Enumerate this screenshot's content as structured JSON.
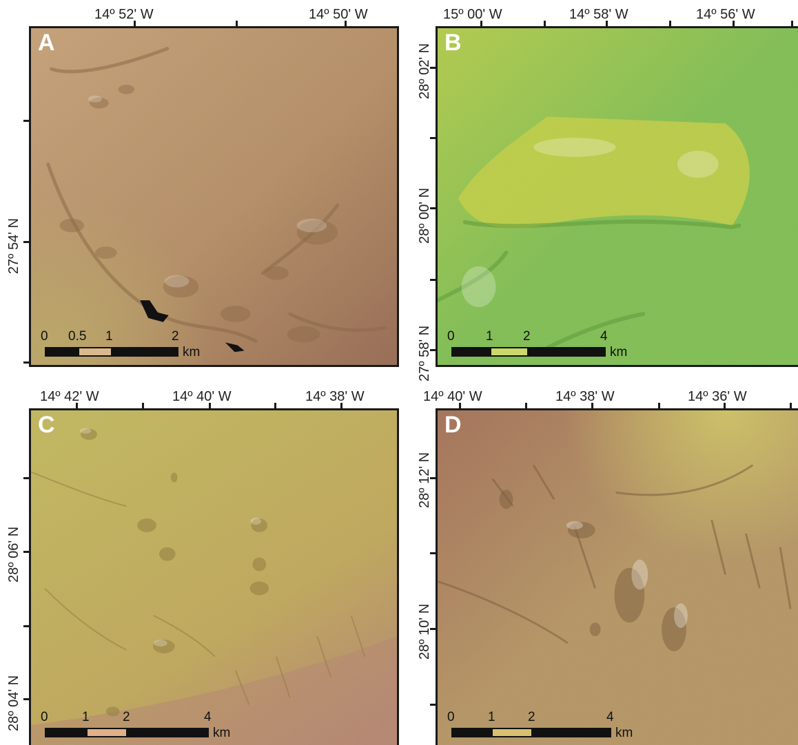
{
  "panels": [
    {
      "label": "A",
      "lon_labels": [
        "14º 52' W",
        "14º 50' W"
      ],
      "lat_labels": [
        "27º 54' N"
      ],
      "scale_labels": [
        "0",
        "0.5",
        "1",
        "2"
      ],
      "scale_unit": "km",
      "colors": {
        "base": "#b8926a",
        "light": "#c9a57c",
        "dark": "#8c6a48",
        "lowleft": "#bfae6a",
        "lowright": "#9a6f57"
      }
    },
    {
      "label": "B",
      "lon_labels": [
        "15º 00' W",
        "14º 58' W",
        "14º 56' W"
      ],
      "lat_labels": [
        "28º 02' N",
        "28º 00' N",
        "27º 58' N"
      ],
      "scale_labels": [
        "0",
        "1",
        "2",
        "4"
      ],
      "scale_unit": "km",
      "colors": {
        "base": "#86c25a",
        "plateau": "#c6d24e",
        "topleft": "#b8cf52",
        "dark": "#5e9a3c"
      }
    },
    {
      "label": "C",
      "lon_labels": [
        "14º 42' W",
        "14º 40' W",
        "14º 38' W"
      ],
      "lat_labels": [
        "28º 06' N",
        "28º 04' N"
      ],
      "scale_labels": [
        "0",
        "1",
        "2",
        "4"
      ],
      "scale_unit": "km",
      "colors": {
        "base": "#c4ac62",
        "top": "#c6bb64",
        "lowright": "#b98a78",
        "dark": "#8f7a40"
      }
    },
    {
      "label": "D",
      "lon_labels": [
        "14º 40' W",
        "14º 38' W",
        "14º 36' W"
      ],
      "lat_labels": [
        "28º 12' N",
        "28º 10' N"
      ],
      "scale_labels": [
        "0",
        "1",
        "2",
        "4"
      ],
      "scale_unit": "km",
      "colors": {
        "base": "#b99a6a",
        "topright": "#d2c76a",
        "topleft": "#a8765e",
        "dark": "#7e6040"
      }
    }
  ]
}
